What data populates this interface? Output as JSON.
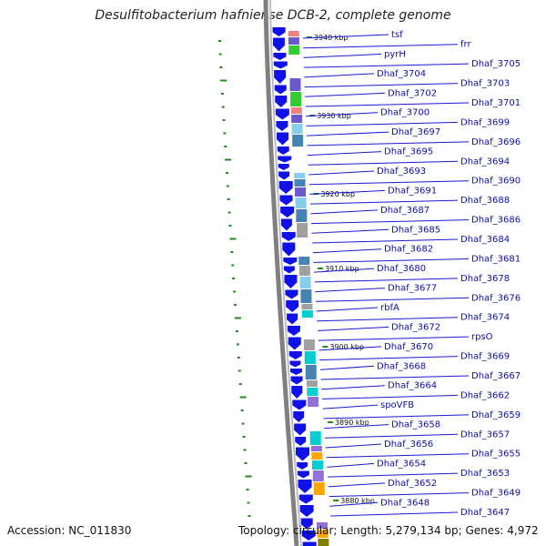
{
  "title": "Desulfitobacterium hafniense DCB-2, complete genome",
  "accession": "Accession: NC_011830",
  "topology": "Topology: circular; Length: 5,279,134 bp; Genes: 4,972",
  "colors": {
    "gene_label": "#1010a0",
    "leader_line": "#1a1ad0",
    "strand_arrow": "#1010e8",
    "backbone": "#808080",
    "gc_marker": "#1f8a1f",
    "tick": "#1f8a1f"
  },
  "scale_marks": [
    "3940 kbp",
    "3930 kbp",
    "3920 kbp",
    "3910 kbp",
    "3900 kbp",
    "3890 kbp",
    "3880 kbp"
  ],
  "gene_labels": [
    "tsf",
    "frr",
    "pyrH",
    "Dhaf_3705",
    "Dhaf_3704",
    "Dhaf_3703",
    "Dhaf_3702",
    "Dhaf_3701",
    "Dhaf_3700",
    "Dhaf_3699",
    "Dhaf_3697",
    "Dhaf_3696",
    "Dhaf_3695",
    "Dhaf_3694",
    "Dhaf_3693",
    "Dhaf_3690",
    "Dhaf_3691",
    "Dhaf_3688",
    "Dhaf_3687",
    "Dhaf_3686",
    "Dhaf_3685",
    "Dhaf_3684",
    "Dhaf_3682",
    "Dhaf_3681",
    "Dhaf_3680",
    "Dhaf_3678",
    "Dhaf_3677",
    "Dhaf_3676",
    "rbfA",
    "Dhaf_3674",
    "Dhaf_3672",
    "rpsO",
    "Dhaf_3670",
    "Dhaf_3669",
    "Dhaf_3668",
    "Dhaf_3667",
    "Dhaf_3664",
    "Dhaf_3662",
    "spoVFB",
    "Dhaf_3659",
    "Dhaf_3658",
    "Dhaf_3657",
    "Dhaf_3656",
    "Dhaf_3655",
    "Dhaf_3654",
    "Dhaf_3653",
    "Dhaf_3652",
    "Dhaf_3649",
    "Dhaf_3648",
    "Dhaf_3647"
  ],
  "cog_colors": [
    "#f08080",
    "#ffa500",
    "#a0a0a0",
    "#6a5acd",
    "#808000",
    "#00ced1",
    "#87ceeb",
    "#32cd32",
    "#9370db",
    "#4682b4"
  ]
}
